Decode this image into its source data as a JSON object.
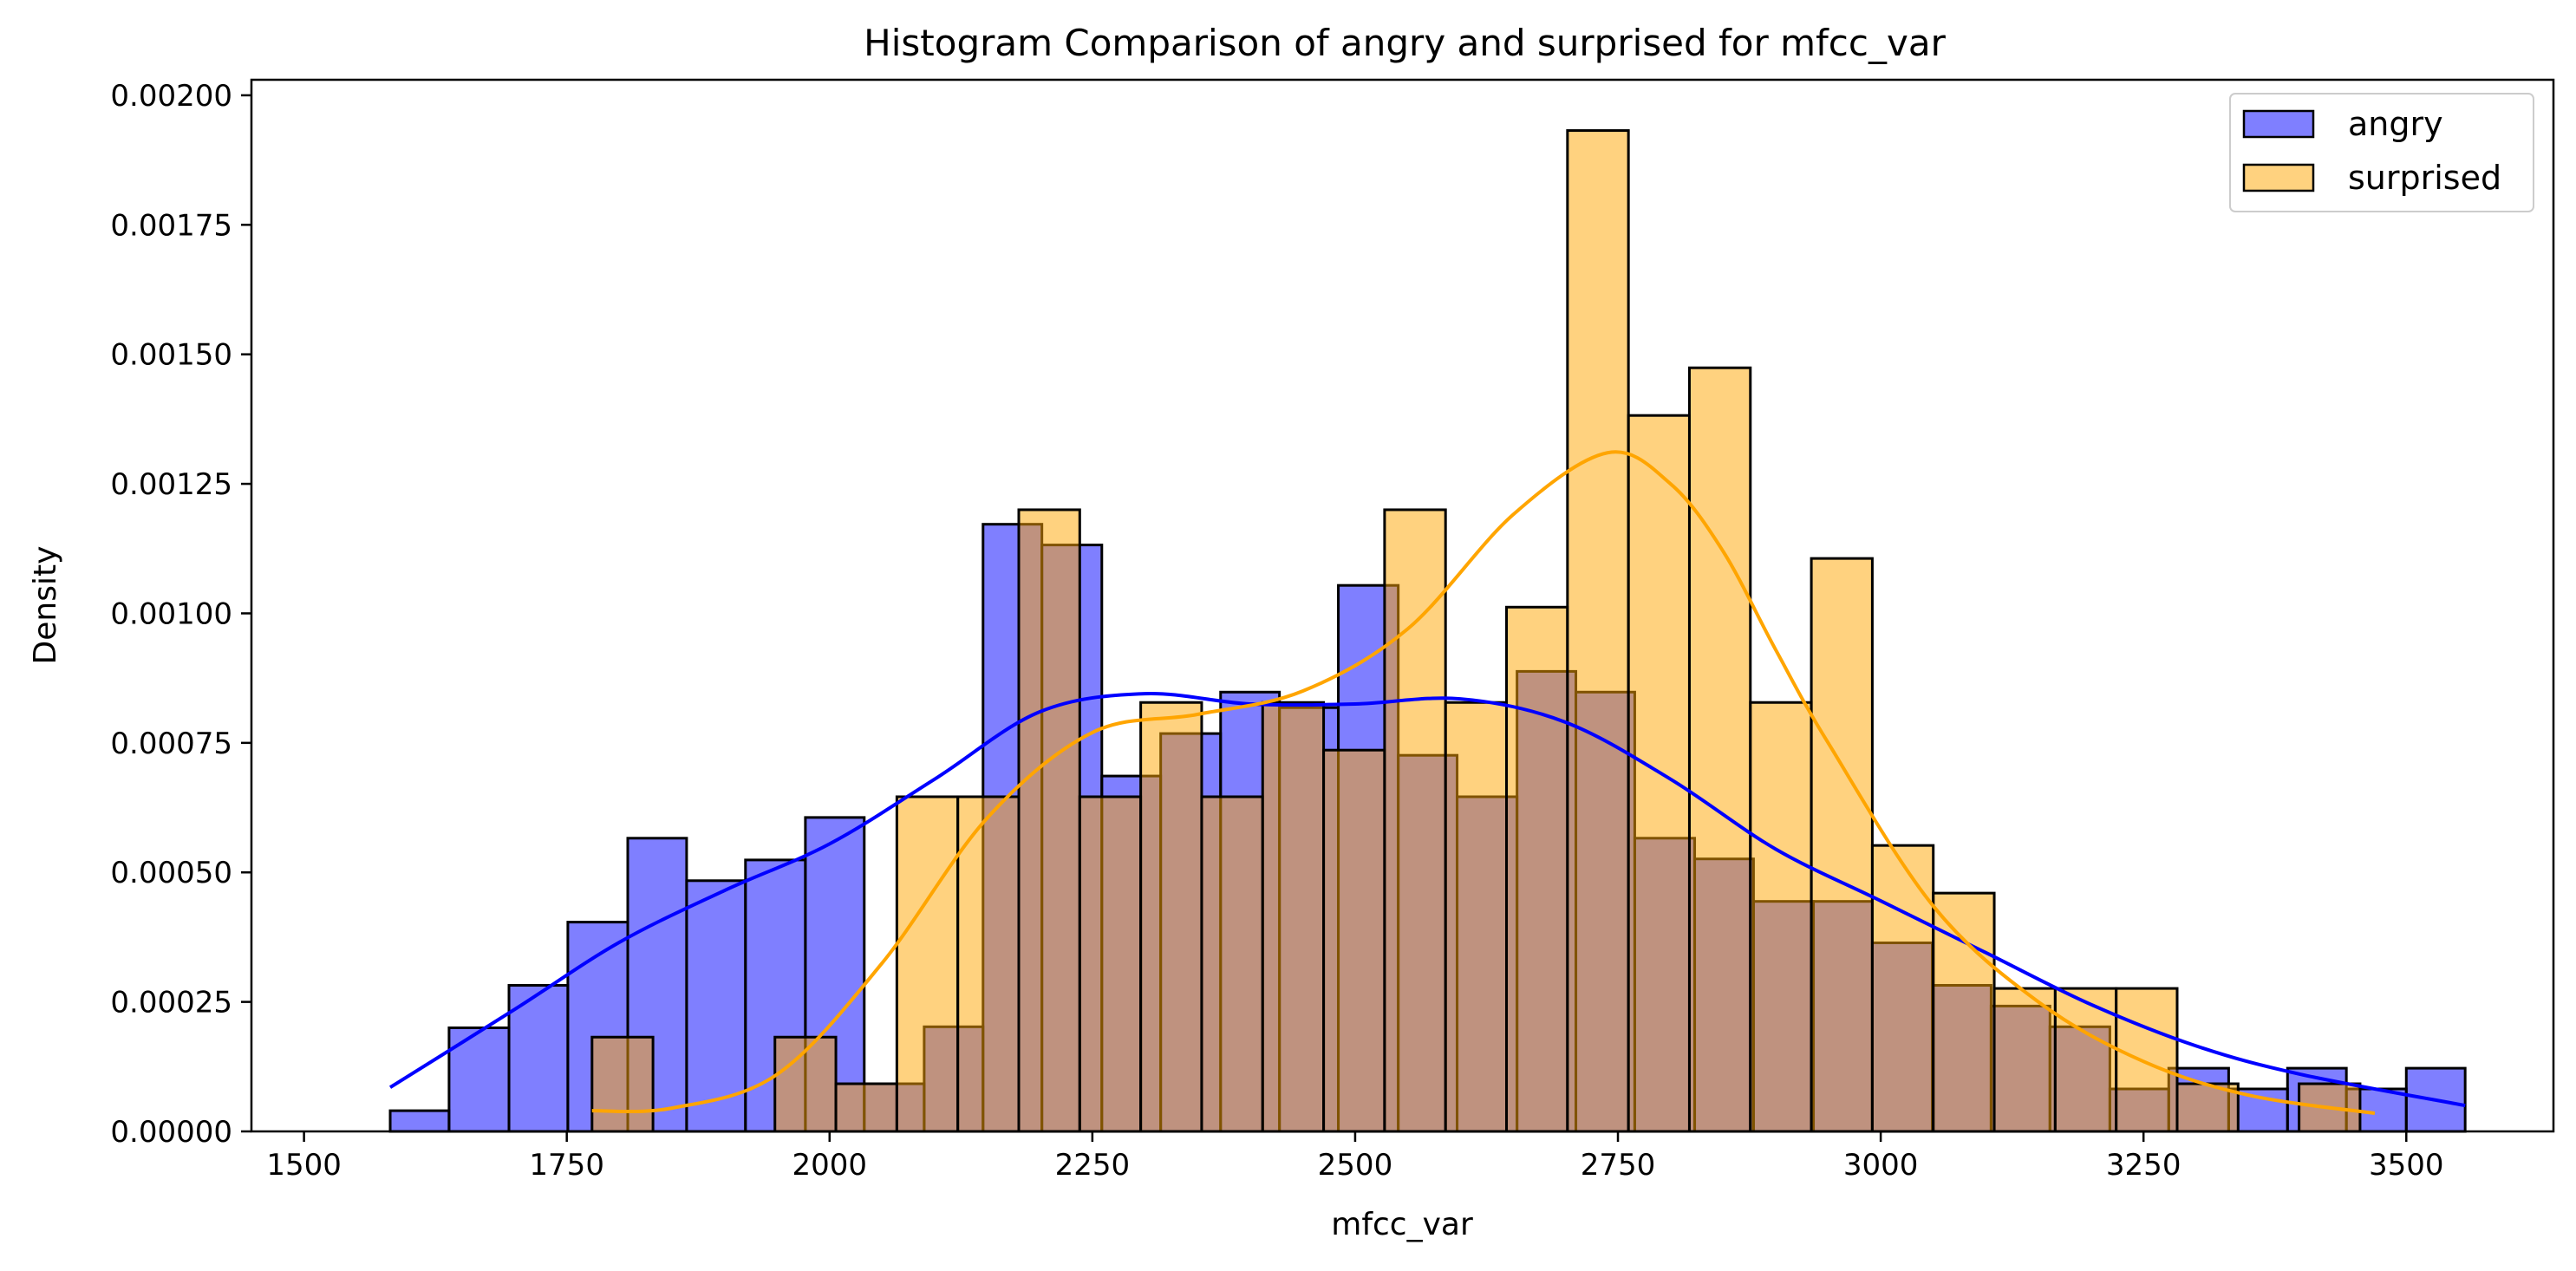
{
  "chart_data": {
    "type": "bar",
    "title": "Histogram Comparison of angry and surprised for mfcc_var",
    "xlabel": "mfcc_var",
    "ylabel": "Density",
    "xlim": [
      1450,
      3640
    ],
    "ylim": [
      0,
      0.00203
    ],
    "xticks": [
      1500,
      1750,
      2000,
      2250,
      2500,
      2750,
      3000,
      3250,
      3500
    ],
    "xtick_labels": [
      "1500",
      "1750",
      "2000",
      "2250",
      "2500",
      "2750",
      "3000",
      "3250",
      "3500"
    ],
    "yticks": [
      0,
      0.00025,
      0.0005,
      0.00075,
      0.001,
      0.00125,
      0.0015,
      0.00175,
      0.002
    ],
    "ytick_labels": [
      "0.00000",
      "0.00025",
      "0.00050",
      "0.00075",
      "0.00100",
      "0.00125",
      "0.00150",
      "0.00175",
      "0.00200"
    ],
    "grid": false,
    "legend_position": "top-right",
    "series": [
      {
        "name": "angry",
        "color": "#0000ff",
        "edges": [
          1582,
          1638,
          1695,
          1751,
          1808,
          1864,
          1920,
          1977,
          2033,
          2090,
          2146,
          2202,
          2259,
          2315,
          2372,
          2428,
          2484,
          2541,
          2597,
          2654,
          2710,
          2766,
          2823,
          2879,
          2936,
          2992,
          3049,
          3105,
          3161,
          3218,
          3274,
          3331,
          3387,
          3443,
          3500,
          3556
        ],
        "values": [
          4e-05,
          0.0002,
          0.000282,
          0.000404,
          0.000566,
          0.000484,
          0.000524,
          0.000606,
          9.2e-05,
          0.000202,
          0.001172,
          0.001132,
          0.000686,
          0.000768,
          0.000848,
          0.000818,
          0.001054,
          0.000726,
          0.000646,
          0.000888,
          0.000848,
          0.000566,
          0.000526,
          0.000444,
          0.000444,
          0.000364,
          0.000282,
          0.000242,
          0.000202,
          8.2e-05,
          0.000122,
          8.2e-05,
          0.000122,
          8.2e-05,
          0.000122,
          4e-05
        ],
        "kde_x": [
          1582,
          1700,
          1800,
          1900,
          2000,
          2100,
          2200,
          2300,
          2400,
          2500,
          2600,
          2700,
          2800,
          2900,
          3000,
          3100,
          3200,
          3300,
          3400,
          3556
        ],
        "kde_y": [
          8.5e-05,
          0.000235,
          0.000365,
          0.000465,
          0.000555,
          0.00068,
          0.00081,
          0.000845,
          0.000825,
          0.000825,
          0.000835,
          0.00079,
          0.00068,
          0.000545,
          0.000445,
          0.000345,
          0.000245,
          0.000165,
          0.00011,
          5e-05
        ]
      },
      {
        "name": "surprised",
        "color": "#ffa500",
        "edges": [
          1774,
          1832,
          1890,
          1948,
          2006,
          2064,
          2122,
          2180,
          2238,
          2296,
          2354,
          2412,
          2470,
          2528,
          2586,
          2644,
          2702,
          2760,
          2818,
          2876,
          2934,
          2992,
          3050,
          3108,
          3166,
          3224,
          3282,
          3340,
          3398,
          3456
        ],
        "values": [
          0.000182,
          0.0,
          0.0,
          0.000182,
          9.2e-05,
          0.000646,
          0.000646,
          0.0012,
          0.000646,
          0.000828,
          0.000646,
          0.000828,
          0.000736,
          0.0012,
          0.000828,
          0.001012,
          0.001932,
          0.001382,
          0.001474,
          0.000828,
          0.001106,
          0.000552,
          0.00046,
          0.000276,
          0.000276,
          0.000276,
          9.2e-05,
          0.0,
          9.2e-05,
          0.0
        ],
        "kde_x": [
          1774,
          1850,
          1950,
          2050,
          2150,
          2250,
          2350,
          2450,
          2550,
          2650,
          2740,
          2800,
          2850,
          2900,
          2950,
          3050,
          3150,
          3250,
          3350,
          3470
        ],
        "kde_y": [
          4e-05,
          4.5e-05,
          0.00011,
          0.000325,
          0.000605,
          0.00077,
          0.000805,
          0.00085,
          0.00097,
          0.00119,
          0.00131,
          0.00125,
          0.00112,
          0.00093,
          0.00075,
          0.000435,
          0.00025,
          0.000135,
          7e-05,
          3.5e-05
        ]
      }
    ]
  }
}
